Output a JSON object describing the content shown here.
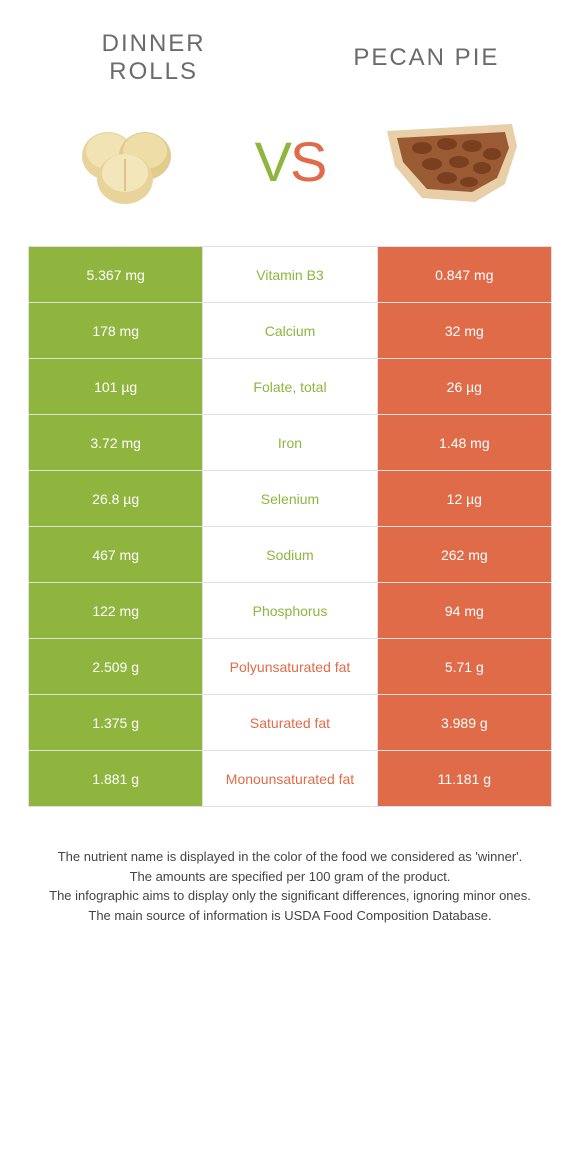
{
  "colors": {
    "left": "#8fb53f",
    "right": "#e06b48",
    "border": "#e0e0e0",
    "title_text": "#6b6b6b",
    "bg": "#ffffff"
  },
  "fonts": {
    "title_size": 24,
    "vs_size": 56,
    "cell_size": 14,
    "footer_size": 13
  },
  "leftFood": {
    "title": "Dinner\nRolls"
  },
  "rightFood": {
    "title": "Pecan Pie"
  },
  "vs": {
    "v": "V",
    "s": "S"
  },
  "rows": [
    {
      "label": "Vitamin B3",
      "left": "5.367 mg",
      "right": "0.847 mg",
      "winner": "left"
    },
    {
      "label": "Calcium",
      "left": "178 mg",
      "right": "32 mg",
      "winner": "left"
    },
    {
      "label": "Folate, total",
      "left": "101 µg",
      "right": "26 µg",
      "winner": "left"
    },
    {
      "label": "Iron",
      "left": "3.72 mg",
      "right": "1.48 mg",
      "winner": "left"
    },
    {
      "label": "Selenium",
      "left": "26.8 µg",
      "right": "12 µg",
      "winner": "left"
    },
    {
      "label": "Sodium",
      "left": "467 mg",
      "right": "262 mg",
      "winner": "left"
    },
    {
      "label": "Phosphorus",
      "left": "122 mg",
      "right": "94 mg",
      "winner": "left"
    },
    {
      "label": "Polyunsaturated fat",
      "left": "2.509 g",
      "right": "5.71 g",
      "winner": "right"
    },
    {
      "label": "Saturated fat",
      "left": "1.375 g",
      "right": "3.989 g",
      "winner": "right"
    },
    {
      "label": "Monounsaturated fat",
      "left": "1.881 g",
      "right": "11.181 g",
      "winner": "right"
    }
  ],
  "footer": {
    "l1": "The nutrient name is displayed in the color of the food we considered as 'winner'.",
    "l2": "The amounts are specified per 100 gram of the product.",
    "l3": "The infographic aims to display only the significant differences, ignoring minor ones.",
    "l4": "The main source of information is USDA Food Composition Database."
  }
}
